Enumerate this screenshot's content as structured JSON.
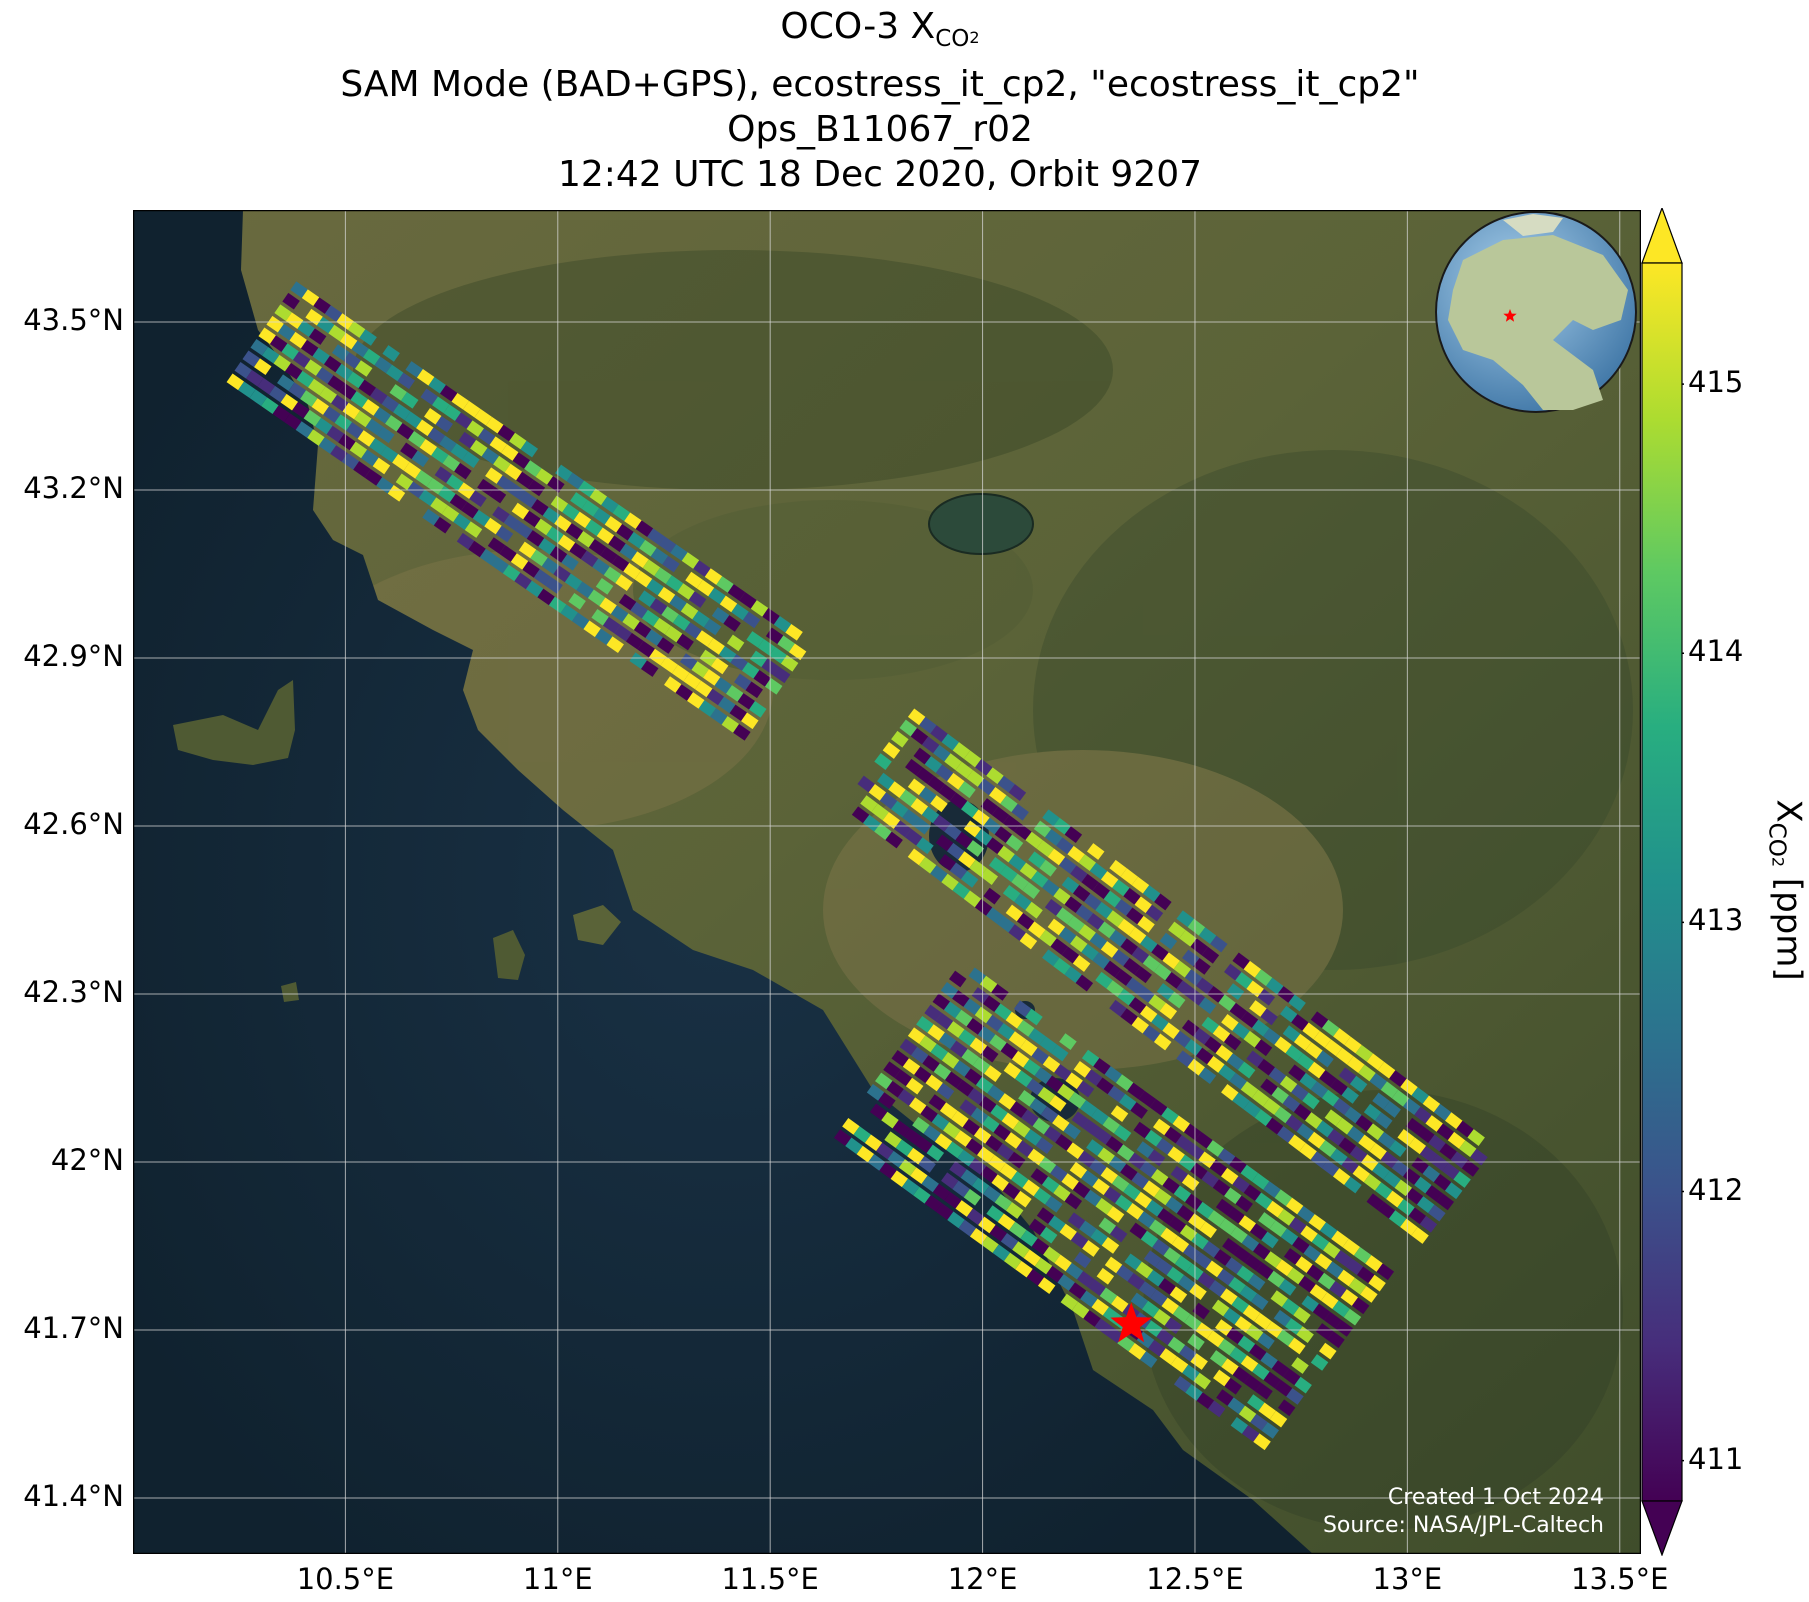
{
  "title": {
    "line1_prefix": "OCO-3 X",
    "line1_sub": "CO",
    "line1_subsub": "2",
    "line2": "SAM Mode (BAD+GPS), ecostress_it_cp2, \"ecostress_it_cp2\"",
    "line3": "Ops_B11067_r02",
    "line4": "12:42 UTC 18 Dec 2020, Orbit 9207"
  },
  "map": {
    "lon_range": [
      10.0,
      13.55
    ],
    "lat_range": [
      41.3,
      43.7
    ],
    "lat_ticks": [
      "43.5°N",
      "43.2°N",
      "42.9°N",
      "42.6°N",
      "42.3°N",
      "42°N",
      "41.7°N",
      "41.4°N"
    ],
    "lat_values": [
      43.5,
      43.2,
      42.9,
      42.6,
      42.3,
      42.0,
      41.7,
      41.4
    ],
    "lon_ticks": [
      "10.5°E",
      "11°E",
      "11.5°E",
      "12°E",
      "12.5°E",
      "13°E",
      "13.5°E"
    ],
    "lon_values": [
      10.5,
      11.0,
      11.5,
      12.0,
      12.5,
      13.0,
      13.5
    ],
    "gridlines": true,
    "target_marker": {
      "lon": 12.35,
      "lat": 41.71,
      "color": "#ff0000",
      "icon": "star-icon"
    },
    "inset": {
      "icon": "globe-icon",
      "placement": "top-right",
      "marker_color": "#ff0000"
    },
    "swaths": [
      {
        "name": "swath-1",
        "lon_start": 10.3,
        "lat_start": 43.48,
        "lon_end": 11.5,
        "lat_end": 42.85
      },
      {
        "name": "swath-2",
        "lon_start": 11.75,
        "lat_start": 42.72,
        "lon_end": 13.1,
        "lat_end": 41.95
      },
      {
        "name": "swath-3",
        "lon_start": 11.8,
        "lat_start": 42.2,
        "lon_end": 12.8,
        "lat_end": 41.65
      }
    ]
  },
  "colorbar": {
    "label_prefix": "X",
    "label_sub": "CO",
    "label_subsub": "2",
    "label_suffix": " [ppm]",
    "min": 410.85,
    "max": 415.45,
    "ticks": [
      "411",
      "412",
      "413",
      "414",
      "415"
    ],
    "tick_values": [
      411,
      412,
      413,
      414,
      415
    ],
    "colormap": "viridis",
    "extend": "both"
  },
  "credits": {
    "created": "Created 1 Oct 2024",
    "source": "Source: NASA/JPL-Caltech"
  }
}
